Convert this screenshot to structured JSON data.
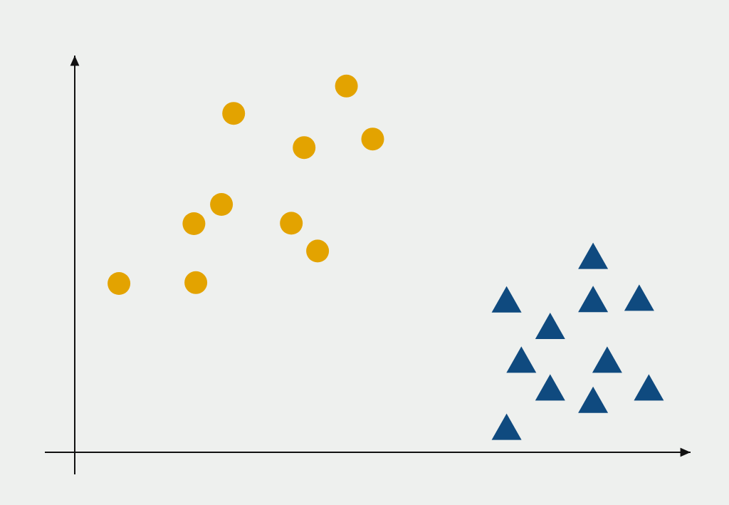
{
  "chart_data": {
    "type": "scatter",
    "title": "",
    "xlabel": "",
    "ylabel": "",
    "grid": false,
    "xlim": [
      0,
      10
    ],
    "ylim": [
      0,
      10
    ],
    "series": [
      {
        "marker": "circle",
        "color": "#e3a300",
        "points": [
          [
            0.69,
            3.95
          ],
          [
            1.86,
            5.35
          ],
          [
            1.89,
            3.97
          ],
          [
            2.29,
            5.8
          ],
          [
            2.48,
            7.93
          ],
          [
            3.38,
            5.36
          ],
          [
            3.58,
            7.13
          ],
          [
            3.79,
            4.71
          ],
          [
            4.24,
            8.57
          ],
          [
            4.65,
            7.33
          ]
        ]
      },
      {
        "marker": "triangle",
        "color": "#0f4a7f",
        "points": [
          [
            6.74,
            0.29
          ],
          [
            6.74,
            3.27
          ],
          [
            6.97,
            1.86
          ],
          [
            7.42,
            1.21
          ],
          [
            7.42,
            2.65
          ],
          [
            8.09,
            0.92
          ],
          [
            8.09,
            3.28
          ],
          [
            8.09,
            4.29
          ],
          [
            8.31,
            1.86
          ],
          [
            8.81,
            3.31
          ],
          [
            8.96,
            1.21
          ]
        ]
      }
    ]
  }
}
